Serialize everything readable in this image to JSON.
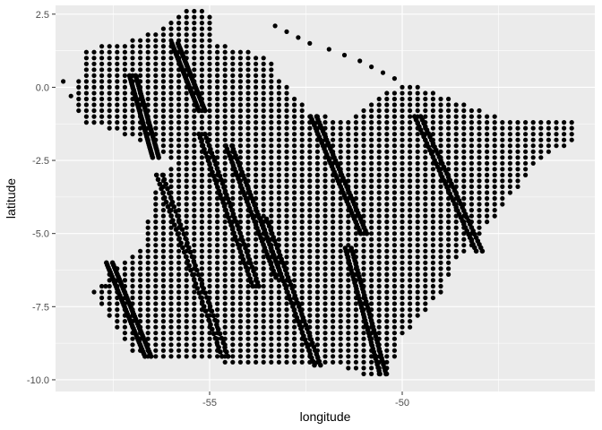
{
  "chart_data": {
    "type": "scatter",
    "xlabel": "longitude",
    "ylabel": "latitude",
    "xlim": [
      -59.0,
      -45.0
    ],
    "ylim": [
      -10.4,
      2.8
    ],
    "x_ticks": [
      -55,
      -50
    ],
    "y_ticks": [
      2.5,
      0.0,
      -2.5,
      -5.0,
      -7.5,
      -10.0
    ],
    "x_tick_labels": [
      "-55",
      "-50"
    ],
    "y_tick_labels": [
      "2.5",
      "0.0",
      "-2.5",
      "-5.0",
      "-7.5",
      "-10.0"
    ],
    "grid": true,
    "legend": "none",
    "panel_background": "#ebebeb",
    "grid_color": "#ffffff",
    "point_color": "#000000",
    "grid_spacing": {
      "lon": 0.2,
      "lat": 0.2
    },
    "region_outline": [
      [
        -58.4,
        0.3
      ],
      [
        -58.2,
        1.3
      ],
      [
        -57.0,
        1.6
      ],
      [
        -56.5,
        1.9
      ],
      [
        -55.6,
        2.6
      ],
      [
        -55.0,
        2.6
      ],
      [
        -54.9,
        1.5
      ],
      [
        -53.5,
        1.1
      ],
      [
        -53.2,
        0.4
      ],
      [
        -52.4,
        -0.8
      ],
      [
        -51.4,
        -1.2
      ],
      [
        -50.7,
        -0.4
      ],
      [
        -49.8,
        0.2
      ],
      [
        -48.4,
        -0.5
      ],
      [
        -47.4,
        -1.1
      ],
      [
        -45.6,
        -1.0
      ],
      [
        -45.4,
        -1.8
      ],
      [
        -46.3,
        -2.3
      ],
      [
        -47.1,
        -3.6
      ],
      [
        -47.9,
        -4.9
      ],
      [
        -48.3,
        -5.6
      ],
      [
        -48.7,
        -6.1
      ],
      [
        -48.9,
        -7.0
      ],
      [
        -49.5,
        -7.8
      ],
      [
        -50.0,
        -8.5
      ],
      [
        -50.3,
        -9.8
      ],
      [
        -50.8,
        -9.9
      ],
      [
        -51.6,
        -9.5
      ],
      [
        -52.6,
        -9.5
      ],
      [
        -53.5,
        -9.5
      ],
      [
        -54.6,
        -9.4
      ],
      [
        -55.6,
        -9.4
      ],
      [
        -56.6,
        -9.3
      ],
      [
        -57.1,
        -9.0
      ],
      [
        -57.3,
        -8.4
      ],
      [
        -58.1,
        -7.0
      ],
      [
        -56.7,
        -5.3
      ],
      [
        -56.5,
        -3.8
      ],
      [
        -56.2,
        -3.0
      ],
      [
        -55.9,
        -2.7
      ],
      [
        -56.4,
        -2.0
      ],
      [
        -57.2,
        -1.6
      ],
      [
        -58.2,
        -1.2
      ],
      [
        -58.6,
        -0.5
      ]
    ],
    "isolated_points": [
      [
        -53.3,
        2.1
      ],
      [
        -53.0,
        1.9
      ],
      [
        -52.7,
        1.7
      ],
      [
        -52.4,
        1.5
      ],
      [
        -51.9,
        1.3
      ],
      [
        -51.5,
        1.1
      ],
      [
        -51.1,
        0.9
      ],
      [
        -50.8,
        0.7
      ],
      [
        -50.5,
        0.5
      ],
      [
        -50.2,
        0.3
      ],
      [
        -57.7,
        -6.8
      ],
      [
        -57.2,
        -6.6
      ],
      [
        -58.8,
        0.2
      ],
      [
        -58.6,
        -0.3
      ]
    ],
    "dense_bands": [
      {
        "from": [
          -57.0,
          0.4
        ],
        "to": [
          -56.4,
          -2.4
        ]
      },
      {
        "from": [
          -55.9,
          1.5
        ],
        "to": [
          -55.2,
          -0.8
        ]
      },
      {
        "from": [
          -55.2,
          -1.6
        ],
        "to": [
          -53.8,
          -6.8
        ]
      },
      {
        "from": [
          -56.3,
          -3.0
        ],
        "to": [
          -54.6,
          -9.2
        ]
      },
      {
        "from": [
          -57.6,
          -6.0
        ],
        "to": [
          -56.6,
          -9.2
        ]
      },
      {
        "from": [
          -54.5,
          -2.0
        ],
        "to": [
          -53.2,
          -6.5
        ]
      },
      {
        "from": [
          -53.6,
          -4.5
        ],
        "to": [
          -52.2,
          -9.5
        ]
      },
      {
        "from": [
          -52.3,
          -1.0
        ],
        "to": [
          -51.0,
          -5.0
        ]
      },
      {
        "from": [
          -51.4,
          -5.5
        ],
        "to": [
          -50.5,
          -9.8
        ]
      },
      {
        "from": [
          -49.6,
          -1.0
        ],
        "to": [
          -48.0,
          -5.6
        ]
      }
    ]
  }
}
